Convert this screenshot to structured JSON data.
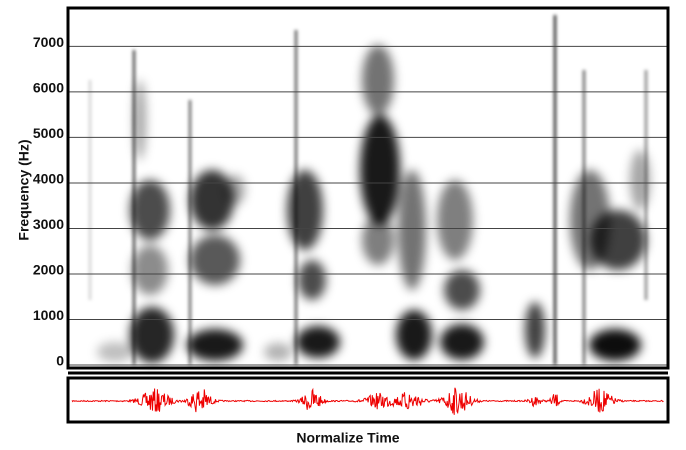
{
  "chart_data": {
    "type": "spectrogram",
    "ylabel": "Frequency (Hz)",
    "xlabel": "Normalize Time",
    "ylim": [
      0,
      7800
    ],
    "yticks": [
      0,
      1000,
      2000,
      3000,
      4000,
      5000,
      6000,
      7000
    ],
    "grid": true
  }
}
